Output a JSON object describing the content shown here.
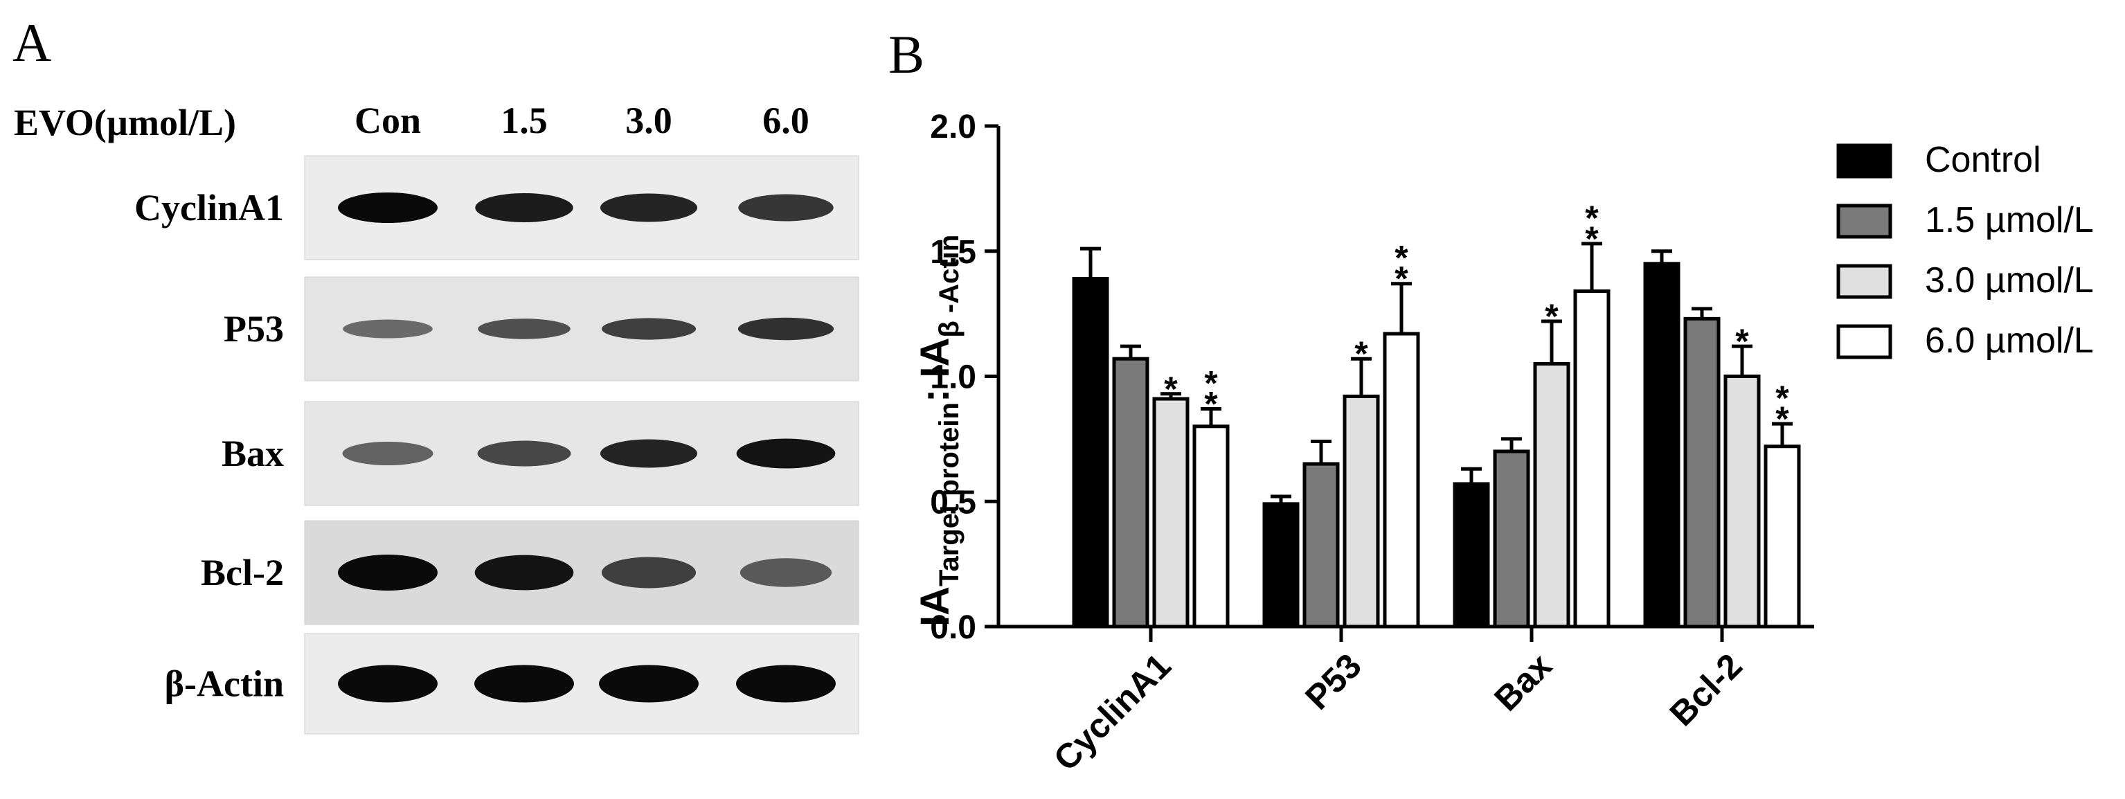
{
  "panel_a": {
    "letter": "A",
    "treatment_label": "EVO(µmol/L)",
    "lanes": [
      "Con",
      "1.5",
      "3.0",
      "6.0"
    ],
    "proteins": [
      "CyclinA1",
      "P53",
      "Bax",
      "Bcl-2",
      "β-Actin"
    ],
    "band_intensity": {
      "CyclinA1": [
        1.0,
        0.9,
        0.85,
        0.75
      ],
      "P53": [
        0.45,
        0.6,
        0.7,
        0.78
      ],
      "Bax": [
        0.5,
        0.65,
        0.85,
        0.95
      ],
      "Bcl-2": [
        1.0,
        0.95,
        0.7,
        0.55
      ],
      "β-Actin": [
        1.0,
        1.0,
        1.0,
        1.0
      ]
    }
  },
  "panel_b": {
    "letter": "B"
  },
  "chart_data": {
    "type": "bar",
    "title": "",
    "categories": [
      "CyclinA1",
      "P53",
      "Bax",
      "Bcl-2"
    ],
    "ylabel_main": "IA",
    "ylabel_sub1": "Target protein",
    "ylabel_sep": ": IA",
    "ylabel_sub2": "β -Actin",
    "xlabel": "",
    "ylim": [
      0.0,
      2.0
    ],
    "yticks": [
      "0.0",
      "0.5",
      "1.0",
      "1.5",
      "2.0"
    ],
    "ytick_values": [
      0.0,
      0.5,
      1.0,
      1.5,
      2.0
    ],
    "legend_position": "right",
    "series": [
      {
        "name": "Control",
        "color": "#000000",
        "values": [
          1.39,
          0.49,
          0.57,
          1.45
        ],
        "errors": [
          0.12,
          0.03,
          0.06,
          0.05
        ],
        "significance": [
          "",
          "",
          "",
          ""
        ]
      },
      {
        "name": "1.5 µmol/L",
        "color": "#7a7a7a",
        "values": [
          1.07,
          0.65,
          0.7,
          1.23
        ],
        "errors": [
          0.05,
          0.09,
          0.05,
          0.04
        ],
        "significance": [
          "",
          "",
          "",
          ""
        ]
      },
      {
        "name": "3.0 µmol/L",
        "color": "#e0e0e0",
        "values": [
          0.91,
          0.92,
          1.05,
          1.0
        ],
        "errors": [
          0.02,
          0.15,
          0.17,
          0.12
        ],
        "significance": [
          "*",
          "*",
          "*",
          "*"
        ]
      },
      {
        "name": "6.0 µmol/L",
        "color": "#ffffff",
        "values": [
          0.8,
          1.17,
          1.34,
          0.72
        ],
        "errors": [
          0.07,
          0.2,
          0.19,
          0.09
        ],
        "significance": [
          "**",
          "**",
          "**",
          "**"
        ]
      }
    ]
  }
}
